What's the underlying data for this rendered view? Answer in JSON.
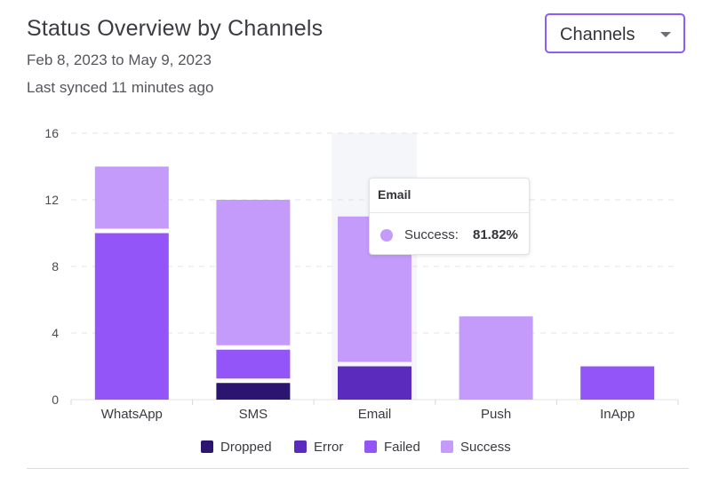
{
  "header": {
    "title": "Status Overview by Channels",
    "date_range": "Feb 8, 2023 to May 9, 2023",
    "sync_status": "Last synced 11 minutes ago"
  },
  "filter": {
    "selected": "Channels",
    "icon": "chevron-down-icon"
  },
  "colors": {
    "Dropped": "#2b1570",
    "Error": "#5a2bbd",
    "Failed": "#9355f7",
    "Success": "#c49bfb",
    "accent": "#8b5cf6"
  },
  "tooltip": {
    "title": "Email",
    "series": "Success",
    "label": "Success:",
    "value": "81.82%"
  },
  "chart_data": {
    "type": "bar",
    "stacked": true,
    "title": "Status Overview by Channels",
    "xlabel": "",
    "ylabel": "",
    "ylim": [
      0,
      16
    ],
    "yticks": [
      0,
      4,
      8,
      12,
      16
    ],
    "grid": true,
    "legend": "bottom-center",
    "highlighted_category": "Email",
    "categories": [
      "WhatsApp",
      "SMS",
      "Email",
      "Push",
      "InApp"
    ],
    "series": [
      {
        "name": "Dropped",
        "values": [
          0,
          1,
          0,
          0,
          0
        ]
      },
      {
        "name": "Error",
        "values": [
          0,
          0,
          2,
          0,
          0
        ]
      },
      {
        "name": "Failed",
        "values": [
          10,
          2,
          0,
          0,
          2
        ]
      },
      {
        "name": "Success",
        "values": [
          4,
          9,
          9,
          5,
          0
        ]
      }
    ]
  }
}
